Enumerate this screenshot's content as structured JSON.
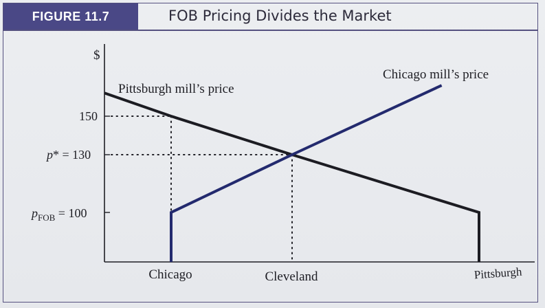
{
  "figure": {
    "badge": "FIGURE 11.7",
    "title": "FOB Pricing Divides the Market"
  },
  "chart_data": {
    "type": "line",
    "ylabel": "$",
    "x_categories": [
      "Chicago",
      "Cleveland",
      "Pittsburgh"
    ],
    "x_positions": [
      0,
      1,
      2.5
    ],
    "y_ticks": [
      {
        "value": 150,
        "label": "150"
      },
      {
        "value": 130,
        "label": "p* = 130"
      },
      {
        "value": 100,
        "label": "pFOB = 100"
      }
    ],
    "series": [
      {
        "name": "Pittsburgh mill's price",
        "color": "#1c1c22",
        "points": [
          [
            -0.55,
            162
          ],
          [
            0,
            150
          ],
          [
            1,
            130
          ],
          [
            2.5,
            100
          ]
        ],
        "drop_to_axis_at": 2.5
      },
      {
        "name": "Chicago mill's price",
        "color": "#232a6e",
        "points": [
          [
            0,
            100
          ],
          [
            1,
            130
          ],
          [
            2.2,
            166
          ]
        ],
        "drop_to_axis_at": 0
      }
    ],
    "reference_lines": [
      {
        "from": [
          0,
          150
        ],
        "note": "150 at Chicago (dotted)"
      },
      {
        "from": [
          1,
          130
        ],
        "note": "p* = 130 at Cleveland (dotted)"
      }
    ],
    "y_axis_text": {
      "dollar": "$",
      "v150": "150",
      "pstar_sym": "p",
      "pstar_rest": "* = 130",
      "pfob_sym": "p",
      "pfob_sub": "FOB",
      "pfob_rest": " = 100"
    },
    "series_labels": {
      "pittsburgh": "Pittsburgh mill’s price",
      "chicago": "Chicago mill’s price"
    }
  }
}
